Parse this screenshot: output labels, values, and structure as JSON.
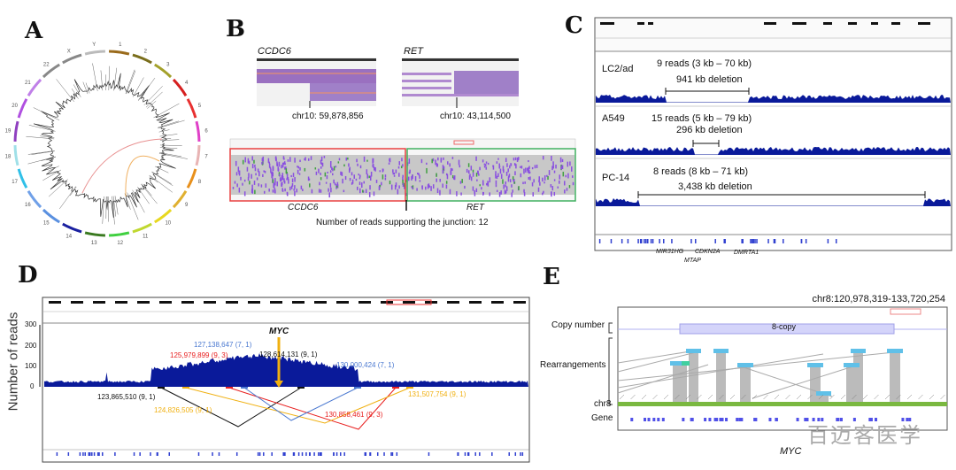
{
  "panels": {
    "a": {
      "label": "A",
      "chromosomes": [
        "1",
        "2",
        "3",
        "4",
        "5",
        "6",
        "7",
        "8",
        "9",
        "10",
        "11",
        "12",
        "13",
        "14",
        "15",
        "16",
        "17",
        "18",
        "19",
        "20",
        "21",
        "22",
        "X",
        "Y"
      ],
      "colors": [
        "#9a6b1c",
        "#7a6e1c",
        "#a3a02a",
        "#d62020",
        "#e83030",
        "#e040c8",
        "#e8b4b4",
        "#e8901c",
        "#e0b030",
        "#e8d820",
        "#c0d830",
        "#40d040",
        "#3a7a20",
        "#1a20a0",
        "#5a90e0",
        "#70a0e8",
        "#30c0e8",
        "#a0e0e8",
        "#9040c0",
        "#b050e0",
        "#c080e8",
        "#888888",
        "#888888",
        "#bbbbbb"
      ]
    },
    "b": {
      "label": "B",
      "gene1": "CCDC6",
      "pos1": "chr10: 59,878,856",
      "gene2": "RET",
      "pos2": "chr10: 43,114,500",
      "left_gene": "CCDC6",
      "right_gene": "RET",
      "junction_text": "Number of reads supporting the junction: 12"
    },
    "c": {
      "label": "C",
      "tracks": [
        {
          "sample": "LC2/ad",
          "reads": "9 reads (3 kb – 70 kb)",
          "deletion": "941 kb deletion"
        },
        {
          "sample": "A549",
          "reads": "15 reads (5 kb – 79 kb)",
          "deletion": "296 kb deletion"
        },
        {
          "sample": "PC-14",
          "reads": "8 reads (8 kb – 71 kb)",
          "deletion": "3,438 kb deletion"
        }
      ],
      "genes": [
        "MIR31HG",
        "CDKN2A",
        "DMRTA1",
        "MTAP"
      ]
    },
    "d": {
      "label": "D",
      "ylabel": "Number of reads",
      "yticks": [
        "300",
        "200",
        "100",
        "0"
      ],
      "gene": "MYC",
      "breakpoints": [
        {
          "text": "127,138,647 (7, 1)",
          "color": "#4a78d0"
        },
        {
          "text": "125,979,899 (9, 3)",
          "color": "#e82020"
        },
        {
          "text": "128,614,131 (9, 1)",
          "color": "#111111"
        },
        {
          "text": "130,000,424 (7, 1)",
          "color": "#4a78d0"
        },
        {
          "text": "123,865,510 (9, 1)",
          "color": "#111111"
        },
        {
          "text": "124,826,505 (9, 1)",
          "color": "#f0b010"
        },
        {
          "text": "131,507,754 (9, 1)",
          "color": "#f0b010"
        },
        {
          "text": "130,858,461 (9, 3)",
          "color": "#e82020"
        }
      ]
    },
    "e": {
      "label": "E",
      "region": "chr8:120,978,319-133,720,254",
      "copy_number": "Copy number",
      "copy_label": "8-copy",
      "rearrangements": "Rearrangements",
      "chr": "chr8",
      "gene": "Gene",
      "gene_name": "MYC",
      "watermark": "百迈客医学"
    }
  },
  "colors": {
    "coverage": "#0a1a9a",
    "myc_arrow": "#f0b010"
  }
}
